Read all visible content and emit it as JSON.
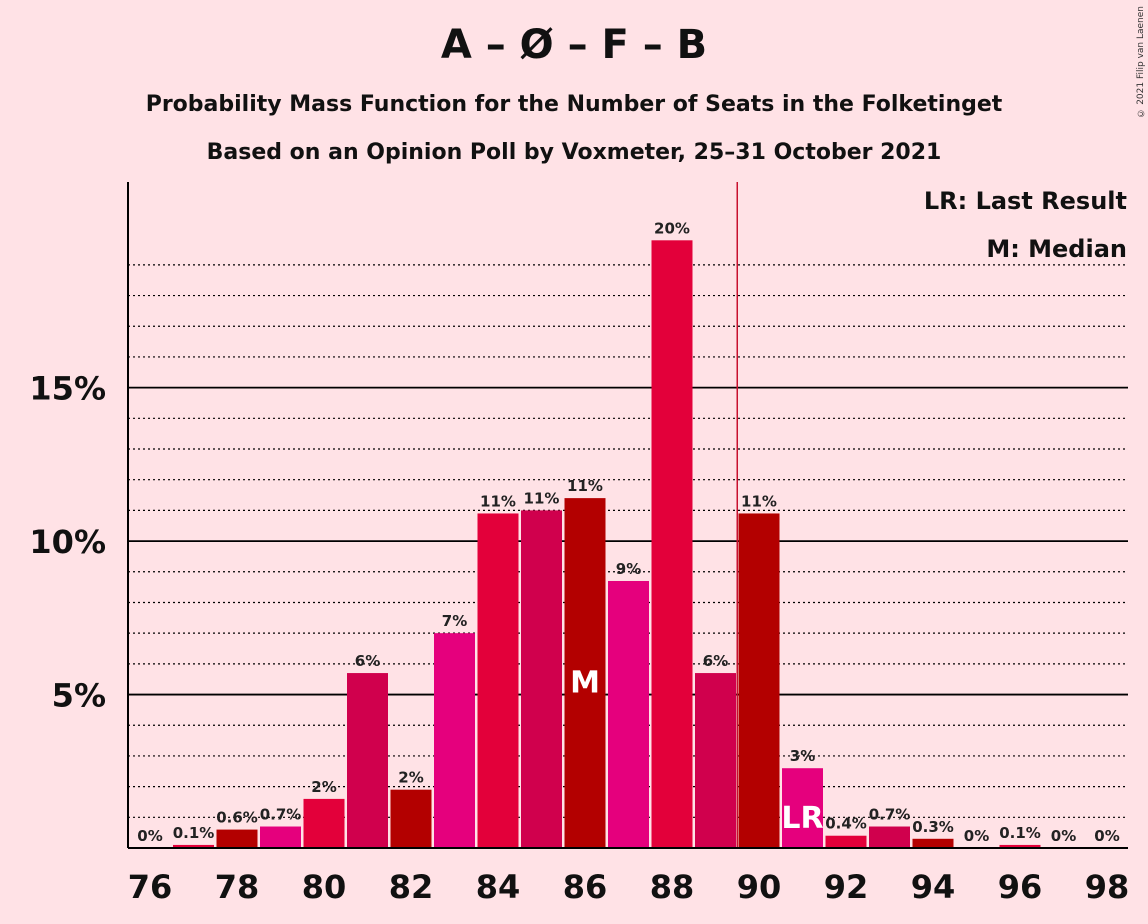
{
  "title": "A – Ø – F – B",
  "subtitle": "Probability Mass Function for the Number of Seats in the Folketinget",
  "subtitle2": "Based on an Opinion Poll by Voxmeter, 25–31 October 2021",
  "copyright": "© 2021 Filip van Laenen",
  "legend": {
    "last_result": "LR: Last Result",
    "median": "M: Median"
  },
  "chart_data": {
    "type": "bar",
    "x": [
      76,
      77,
      78,
      79,
      80,
      81,
      82,
      83,
      84,
      85,
      86,
      87,
      88,
      89,
      90,
      91,
      92,
      93,
      94,
      95,
      96,
      97,
      98
    ],
    "values": [
      0,
      0.1,
      0.6,
      0.7,
      1.6,
      5.7,
      1.9,
      7.0,
      10.9,
      11.0,
      11.4,
      8.7,
      19.8,
      5.7,
      10.9,
      2.6,
      0.4,
      0.7,
      0.3,
      0,
      0.1,
      0,
      0
    ],
    "labels": [
      "0%",
      "0.1%",
      "0.6%",
      "0.7%",
      "2%",
      "6%",
      "2%",
      "7%",
      "11%",
      "11%",
      "11%",
      "9%",
      "20%",
      "6%",
      "11%",
      "3%",
      "0.4%",
      "0.7%",
      "0.3%",
      "0%",
      "0.1%",
      "0%",
      "0%"
    ],
    "colors": [
      "#B30000",
      "#E3003A",
      "#B30000",
      "#E5007D",
      "#E3003A",
      "#D0004D",
      "#B30000",
      "#E5007D",
      "#E3003A",
      "#D0004D",
      "#B30000",
      "#E5007D",
      "#E3003A",
      "#D0004D",
      "#B30000",
      "#E5007D",
      "#E3003A",
      "#D0004D",
      "#B30000",
      "#E5007D",
      "#E3003A",
      "#D0004D",
      "#B30000"
    ],
    "x_ticks": [
      "76",
      "78",
      "80",
      "82",
      "84",
      "86",
      "88",
      "90",
      "92",
      "94",
      "96",
      "98"
    ],
    "y_ticks": [
      "5%",
      "10%",
      "15%"
    ],
    "y_tick_values": [
      5,
      10,
      15
    ],
    "ylim": [
      0,
      21.7
    ],
    "majority_line": 89.5,
    "median": 86,
    "median_label": "M",
    "last_result": 91,
    "last_result_label": "LR",
    "legend_placement": "top-right",
    "grid": true
  }
}
